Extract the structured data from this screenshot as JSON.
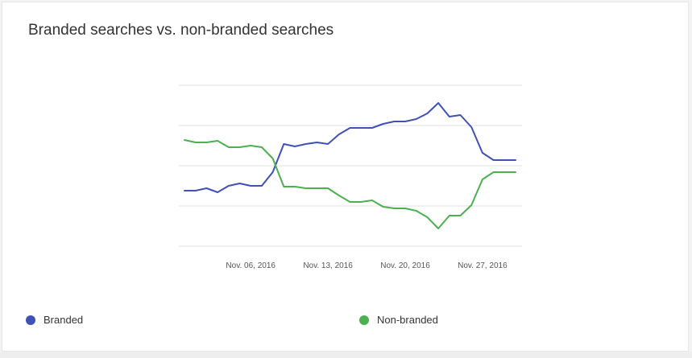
{
  "card": {
    "title": "Branded searches vs. non-branded searches"
  },
  "colors": {
    "branded": "#3f51b5",
    "nonbranded": "#4caf50",
    "grid": "#e0e0e0"
  },
  "legend": {
    "branded_label": "Branded",
    "nonbranded_label": "Non-branded",
    "placement": "bottom"
  },
  "chart_data": {
    "type": "line",
    "title": "Branded searches vs. non-branded searches",
    "xlabel": "",
    "ylabel": "",
    "grid": true,
    "y_tick_labels_shown": false,
    "x": [
      "2016-10-31",
      "2016-11-01",
      "2016-11-02",
      "2016-11-03",
      "2016-11-04",
      "2016-11-05",
      "2016-11-06",
      "2016-11-07",
      "2016-11-08",
      "2016-11-09",
      "2016-11-10",
      "2016-11-11",
      "2016-11-12",
      "2016-11-13",
      "2016-11-14",
      "2016-11-15",
      "2016-11-16",
      "2016-11-17",
      "2016-11-18",
      "2016-11-19",
      "2016-11-20",
      "2016-11-21",
      "2016-11-22",
      "2016-11-23",
      "2016-11-24",
      "2016-11-25",
      "2016-11-26",
      "2016-11-27",
      "2016-11-28",
      "2016-11-29",
      "2016-11-30"
    ],
    "x_ticks": [
      {
        "date": "2016-11-06",
        "label": "Nov. 06, 2016"
      },
      {
        "date": "2016-11-13",
        "label": "Nov. 13, 2016"
      },
      {
        "date": "2016-11-20",
        "label": "Nov. 20, 2016"
      },
      {
        "date": "2016-11-27",
        "label": "Nov. 27, 2016"
      }
    ],
    "ylim": [
      0,
      4
    ],
    "y_gridlines": [
      0,
      1,
      2,
      3,
      4
    ],
    "series": [
      {
        "name": "Branded",
        "color": "#3f51b5",
        "values": [
          1.38,
          1.38,
          1.44,
          1.34,
          1.5,
          1.56,
          1.5,
          1.5,
          1.84,
          2.54,
          2.48,
          2.54,
          2.58,
          2.54,
          2.78,
          2.94,
          2.94,
          2.94,
          3.04,
          3.1,
          3.1,
          3.16,
          3.3,
          3.56,
          3.22,
          3.26,
          2.96,
          2.32,
          2.14,
          2.14,
          2.14
        ]
      },
      {
        "name": "Non-branded",
        "color": "#4caf50",
        "values": [
          2.64,
          2.58,
          2.58,
          2.62,
          2.46,
          2.46,
          2.5,
          2.46,
          2.18,
          1.48,
          1.48,
          1.44,
          1.44,
          1.44,
          1.26,
          1.1,
          1.1,
          1.14,
          0.98,
          0.94,
          0.94,
          0.88,
          0.72,
          0.44,
          0.76,
          0.76,
          1.02,
          1.66,
          1.84,
          1.84,
          1.84
        ]
      }
    ]
  }
}
